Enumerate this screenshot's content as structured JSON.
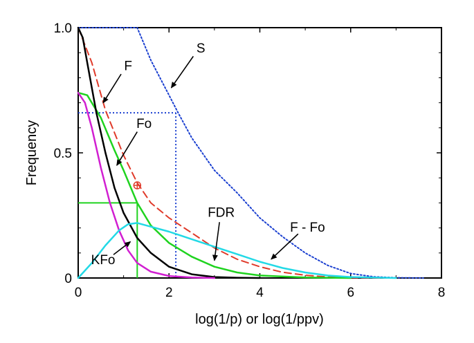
{
  "chart_data": {
    "type": "line",
    "xlabel": "log(1/p) or log(1/ppv)",
    "ylabel": "Frequency",
    "xlim": [
      0,
      8
    ],
    "ylim": [
      0,
      1.0
    ],
    "x_ticks": [
      "0",
      "2",
      "4",
      "6",
      "8"
    ],
    "y_ticks": [
      "0",
      "0.5",
      "1.0"
    ],
    "grid": false,
    "series": [
      {
        "name": "S",
        "color": "#1a3fd0",
        "style": "dotted",
        "x": [
          0,
          1.3,
          1.6,
          2.0,
          2.2,
          2.5,
          3.0,
          3.5,
          4.0,
          4.5,
          5.0,
          5.5,
          6.0,
          6.5,
          7.0,
          7.6
        ],
        "y": [
          1.0,
          1.0,
          0.87,
          0.73,
          0.66,
          0.56,
          0.43,
          0.34,
          0.24,
          0.165,
          0.1,
          0.05,
          0.018,
          0.005,
          0.001,
          0.0
        ]
      },
      {
        "name": "F",
        "color": "#e03a2a",
        "style": "dashed",
        "x": [
          0,
          0.3,
          0.6,
          1.0,
          1.3,
          1.6,
          2.0,
          2.5,
          3.0,
          3.5,
          4.0,
          4.5,
          5.0,
          5.5,
          6.0,
          7.0
        ],
        "y": [
          1.0,
          0.86,
          0.67,
          0.49,
          0.38,
          0.3,
          0.24,
          0.18,
          0.12,
          0.075,
          0.045,
          0.023,
          0.011,
          0.004,
          0.0015,
          0.0
        ]
      },
      {
        "name": "Fo",
        "color": "#1fd31f",
        "style": "solid",
        "x": [
          0,
          0.2,
          0.5,
          0.8,
          1.0,
          1.3,
          1.6,
          2.0,
          2.5,
          3.0,
          3.5,
          4.0,
          5.0,
          6.0
        ],
        "y": [
          0.74,
          0.73,
          0.64,
          0.51,
          0.43,
          0.3,
          0.21,
          0.14,
          0.085,
          0.045,
          0.022,
          0.01,
          0.002,
          0.0
        ]
      },
      {
        "name": "KFo",
        "color": "#000000",
        "style": "solid",
        "x": [
          0,
          0.1,
          0.2,
          0.4,
          0.6,
          0.8,
          1.0,
          1.3,
          1.6,
          2.0,
          2.5,
          3.0,
          3.5,
          4.0
        ],
        "y": [
          1.0,
          0.96,
          0.86,
          0.66,
          0.5,
          0.36,
          0.26,
          0.16,
          0.1,
          0.045,
          0.015,
          0.004,
          0.001,
          0.0
        ]
      },
      {
        "name": "magenta",
        "color": "#d11fd1",
        "style": "solid",
        "x": [
          0,
          0.15,
          0.3,
          0.5,
          0.7,
          0.9,
          1.1,
          1.3,
          1.6,
          2.0,
          2.5,
          3.0
        ],
        "y": [
          0.74,
          0.7,
          0.6,
          0.44,
          0.3,
          0.19,
          0.11,
          0.06,
          0.025,
          0.008,
          0.002,
          0.0
        ]
      },
      {
        "name": "F - Fo",
        "color": "#22d9e6",
        "style": "solid",
        "x": [
          0,
          0.3,
          0.6,
          0.9,
          1.1,
          1.3,
          1.6,
          2.0,
          2.5,
          3.0,
          3.5,
          4.0,
          4.5,
          5.0,
          5.5,
          6.0,
          7.0
        ],
        "y": [
          0.0,
          0.06,
          0.13,
          0.19,
          0.215,
          0.22,
          0.205,
          0.185,
          0.155,
          0.125,
          0.095,
          0.065,
          0.04,
          0.022,
          0.01,
          0.004,
          0.0
        ]
      }
    ],
    "reference_lines": [
      {
        "color": "#1a3fd0",
        "style": "dotted",
        "x_at": 2.15,
        "y_at": 0.66
      },
      {
        "color": "#1fd31f",
        "style": "solid",
        "x_at": 1.3,
        "y_at": 0.3
      }
    ],
    "marker": {
      "x": 1.3,
      "y": 0.37,
      "color": "#e03a2a",
      "symbol": "circle-plus"
    },
    "annotations": [
      {
        "text": "F",
        "label_xy": [
          1.1,
          0.83
        ],
        "arrow_to": [
          0.55,
          0.7
        ]
      },
      {
        "text": "Fo",
        "label_xy": [
          1.45,
          0.6
        ],
        "arrow_to": [
          0.85,
          0.45
        ]
      },
      {
        "text": "S",
        "label_xy": [
          2.7,
          0.9
        ],
        "arrow_to": [
          2.05,
          0.76
        ]
      },
      {
        "text": "FDR",
        "label_xy": [
          3.15,
          0.245
        ],
        "arrow_to": [
          3.0,
          0.07
        ]
      },
      {
        "text": "F - Fo",
        "label_xy": [
          5.05,
          0.185
        ],
        "arrow_to": [
          4.25,
          0.075
        ]
      },
      {
        "text": "KFo",
        "label_xy": [
          0.55,
          0.055
        ],
        "arrow_to": [
          1.15,
          0.145
        ]
      }
    ]
  }
}
